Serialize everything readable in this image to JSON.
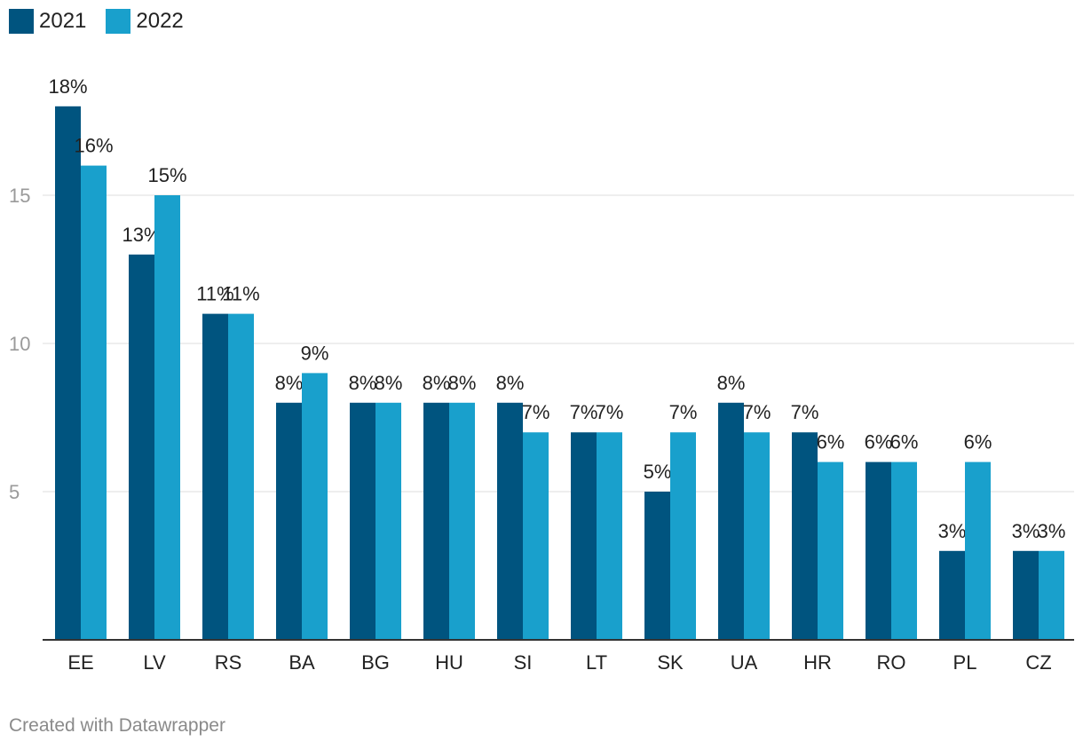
{
  "colors": {
    "series_2021": "#00547f",
    "series_2022": "#19a0cc",
    "grid": "#dddddd",
    "axis": "#333333"
  },
  "legend": [
    {
      "label": "2021",
      "color": "#00547f"
    },
    {
      "label": "2022",
      "color": "#19a0cc"
    }
  ],
  "footer": {
    "credit": "Created with Datawrapper"
  },
  "chart_data": {
    "type": "bar",
    "categories": [
      "EE",
      "LV",
      "RS",
      "BA",
      "BG",
      "HU",
      "SI",
      "LT",
      "SK",
      "UA",
      "HR",
      "RO",
      "PL",
      "CZ"
    ],
    "series": [
      {
        "name": "2021",
        "values": [
          18,
          13,
          11,
          8,
          8,
          8,
          8,
          7,
          5,
          8,
          7,
          6,
          3,
          3
        ],
        "labels": [
          "18%",
          "13%",
          "11%",
          "8%",
          "8%",
          "8%",
          "8%",
          "7%",
          "5%",
          "8%",
          "7%",
          "6%",
          "3%",
          "3%"
        ]
      },
      {
        "name": "2022",
        "values": [
          16,
          15,
          11,
          9,
          8,
          8,
          7,
          7,
          7,
          7,
          6,
          6,
          6,
          3
        ],
        "labels": [
          "16%",
          "15%",
          "11%",
          "9%",
          "8%",
          "8%",
          "7%",
          "7%",
          "7%",
          "7%",
          "6%",
          "6%",
          "6%",
          "3%"
        ]
      }
    ],
    "yticks": [
      5,
      10,
      15
    ],
    "ylim": [
      0,
      20
    ],
    "grid": true,
    "legend_position": "top-left",
    "title": "",
    "xlabel": "",
    "ylabel": ""
  }
}
